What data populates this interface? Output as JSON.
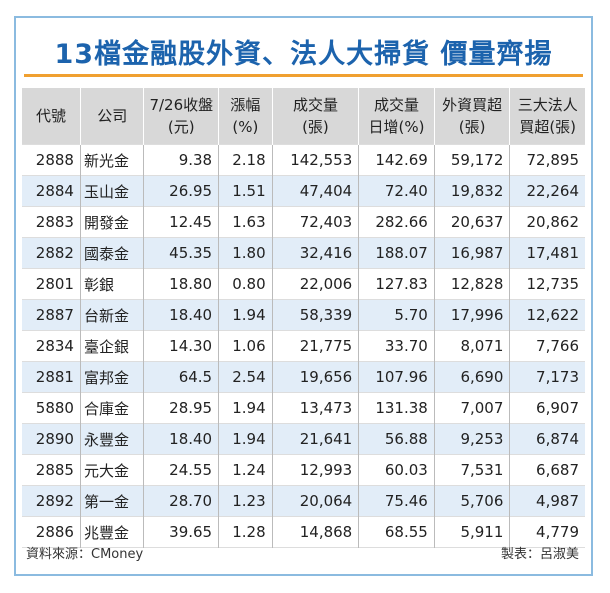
{
  "header": {
    "title": "13檔金融股外資、法人大掃貨 價量齊揚"
  },
  "table": {
    "columns": [
      [
        "代號"
      ],
      [
        "公司"
      ],
      [
        "7/26收盤",
        "(元)"
      ],
      [
        "漲幅",
        "(%)"
      ],
      [
        "成交量",
        "(張)"
      ],
      [
        "成交量",
        "日增(%)"
      ],
      [
        "外資買超",
        "(張)"
      ],
      [
        "三大法人",
        "買超(張)"
      ]
    ],
    "rows": [
      [
        "2888",
        "新光金",
        "9.38",
        "2.18",
        "142,553",
        "142.69",
        "59,172",
        "72,895"
      ],
      [
        "2884",
        "玉山金",
        "26.95",
        "1.51",
        "47,404",
        "72.40",
        "19,832",
        "22,264"
      ],
      [
        "2883",
        "開發金",
        "12.45",
        "1.63",
        "72,403",
        "282.66",
        "20,637",
        "20,862"
      ],
      [
        "2882",
        "國泰金",
        "45.35",
        "1.80",
        "32,416",
        "188.07",
        "16,987",
        "17,481"
      ],
      [
        "2801",
        "彰銀",
        "18.80",
        "0.80",
        "22,006",
        "127.83",
        "12,828",
        "12,735"
      ],
      [
        "2887",
        "台新金",
        "18.40",
        "1.94",
        "58,339",
        "5.70",
        "17,996",
        "12,622"
      ],
      [
        "2834",
        "臺企銀",
        "14.30",
        "1.06",
        "21,775",
        "33.70",
        "8,071",
        "7,766"
      ],
      [
        "2881",
        "富邦金",
        "64.5",
        "2.54",
        "19,656",
        "107.96",
        "6,690",
        "7,173"
      ],
      [
        "5880",
        "合庫金",
        "28.95",
        "1.94",
        "13,473",
        "131.38",
        "7,007",
        "6,907"
      ],
      [
        "2890",
        "永豐金",
        "18.40",
        "1.94",
        "21,641",
        "56.88",
        "9,253",
        "6,874"
      ],
      [
        "2885",
        "元大金",
        "24.55",
        "1.24",
        "12,993",
        "60.03",
        "7,531",
        "6,687"
      ],
      [
        "2892",
        "第一金",
        "28.70",
        "1.23",
        "20,064",
        "75.46",
        "5,706",
        "4,987"
      ],
      [
        "2886",
        "兆豐金",
        "39.65",
        "1.28",
        "14,868",
        "68.55",
        "5,911",
        "4,779"
      ]
    ]
  },
  "footer": {
    "source": "資料來源：CMoney",
    "author": "製表：呂淑美"
  }
}
